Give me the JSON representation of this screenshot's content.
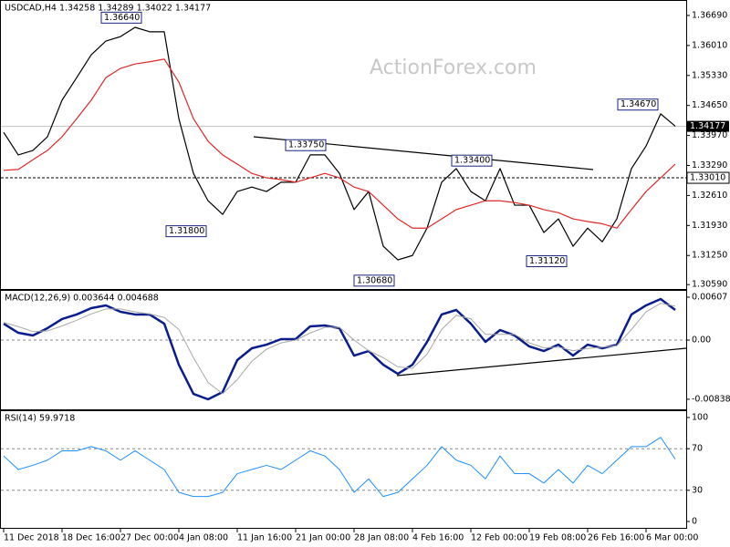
{
  "chart_data": [
    {
      "type": "line",
      "title": "USDCAD,H4  1.34258 1.34289 1.34022 1.34177",
      "watermark": "ActionForex.com",
      "ylim": [
        1.3047,
        1.3704
      ],
      "yticks": [
        {
          "value": 1.3669,
          "label": "1.36690"
        },
        {
          "value": 1.3601,
          "label": "1.36010"
        },
        {
          "value": 1.3533,
          "label": "1.35330"
        },
        {
          "value": 1.3465,
          "label": "1.34650"
        },
        {
          "value": 1.3397,
          "label": "1.33970"
        },
        {
          "value": 1.3329,
          "label": "1.33290"
        },
        {
          "value": 1.3261,
          "label": "1.32610"
        },
        {
          "value": 1.3193,
          "label": "1.31930"
        },
        {
          "value": 1.3125,
          "label": "1.31250"
        },
        {
          "value": 1.3059,
          "label": "1.30590"
        }
      ],
      "series": [
        {
          "color": "#000000",
          "values": [
            1.3404,
            1.3353,
            1.3363,
            1.3394,
            1.3477,
            1.3528,
            1.358,
            1.3611,
            1.3621,
            1.3642,
            1.3632,
            1.3632,
            1.3435,
            1.3311,
            1.3249,
            1.3218,
            1.327,
            1.328,
            1.327,
            1.3291,
            1.3291,
            1.3353,
            1.3353,
            1.3311,
            1.3229,
            1.327,
            1.3146,
            1.3115,
            1.3125,
            1.3187,
            1.3291,
            1.3322,
            1.327,
            1.3249,
            1.3322,
            1.3239,
            1.3239,
            1.3177,
            1.3208,
            1.3146,
            1.3187,
            1.3156,
            1.3208,
            1.3322,
            1.3373,
            1.3446,
            1.3418
          ]
        },
        {
          "color": "#e02828",
          "values": [
            1.3318,
            1.332,
            1.3342,
            1.3363,
            1.3394,
            1.3435,
            1.3477,
            1.3528,
            1.3549,
            1.3559,
            1.3564,
            1.357,
            1.3518,
            1.3435,
            1.3384,
            1.3353,
            1.3332,
            1.3311,
            1.3301,
            1.3297,
            1.3291,
            1.3301,
            1.3311,
            1.3301,
            1.328,
            1.327,
            1.3239,
            1.3208,
            1.3187,
            1.3187,
            1.3208,
            1.3229,
            1.3239,
            1.3249,
            1.3249,
            1.3245,
            1.3239,
            1.3229,
            1.3222,
            1.3208,
            1.3202,
            1.3197,
            1.3187,
            1.3229,
            1.327,
            1.3301,
            1.3332
          ]
        }
      ],
      "annotations": [
        {
          "value": 1.3664,
          "label": "1.36640"
        },
        {
          "value": 1.3375,
          "label": "1.33750"
        },
        {
          "value": 1.318,
          "label": "1.31800"
        },
        {
          "value": 1.3068,
          "label": "1.30680"
        },
        {
          "value": 1.334,
          "label": "1.33400"
        },
        {
          "value": 1.3112,
          "label": "1.31120"
        },
        {
          "value": 1.3467,
          "label": "1.34670"
        }
      ],
      "level": {
        "value": 1.3301,
        "label": "1.33010"
      },
      "current_price": {
        "value": 1.34177,
        "label": "1.34177"
      }
    },
    {
      "type": "line",
      "title": "MACD(12,26,9) 0.003644 0.004688",
      "ylim": [
        -0.00994,
        0.0071
      ],
      "yticks": [
        0.00607,
        {
          "value": 0,
          "label": "0.00"
        },
        -0.008381
      ],
      "reference_lines": [
        0
      ],
      "series": [
        {
          "color": "#0b1d8c",
          "width": 2.5,
          "values": [
            0.00232,
            0.00103,
            0.00065,
            0.00168,
            0.00297,
            0.00362,
            0.00452,
            0.00491,
            0.004,
            0.00362,
            0.00362,
            0.00232,
            -0.00349,
            -0.00762,
            -0.00839,
            -0.00736,
            -0.00284,
            -0.00116,
            -0.00065,
            0.00013,
            0.00013,
            0.00194,
            0.00207,
            0.00168,
            -0.0022,
            -0.00155,
            -0.00349,
            -0.00478,
            -0.00349,
            -0.00026,
            0.00362,
            0.00426,
            0.00232,
            -0.00026,
            0.00142,
            0.00065,
            -0.0009,
            -0.00155,
            -0.00065,
            -0.0022,
            -0.00065,
            -0.00116,
            -0.00065,
            0.00362,
            0.00491,
            0.00581,
            0.00426
          ]
        },
        {
          "color": "#a8a8a8",
          "width": 1,
          "values": [
            0.0025,
            0.0019,
            0.0012,
            0.0013,
            0.002,
            0.0028,
            0.0037,
            0.0044,
            0.0044,
            0.004,
            0.0037,
            0.0032,
            0.0015,
            -0.0025,
            -0.006,
            -0.0076,
            -0.0056,
            -0.003,
            -0.0013,
            -0.0004,
            0,
            0.001,
            0.0018,
            0.0018,
            0,
            -0.0015,
            -0.0025,
            -0.0038,
            -0.004,
            -0.002,
            0.0015,
            0.0035,
            0.003,
            0.0008,
            0.0008,
            0.0008,
            -0.0004,
            -0.0011,
            -0.001,
            -0.0015,
            -0.0012,
            -0.001,
            -0.0008,
            0.0015,
            0.004,
            0.0052,
            0.0048
          ]
        }
      ]
    },
    {
      "type": "line",
      "title": "RSI(14) 59.9718",
      "ylim": [
        -7,
        107
      ],
      "yticks": [
        0,
        30,
        70,
        100
      ],
      "reference_lines": [
        30,
        70
      ],
      "categories": [
        "11 Dec 2018",
        null,
        null,
        null,
        "18 Dec 16:00",
        null,
        null,
        null,
        "27 Dec 00:00",
        null,
        null,
        null,
        "4 Jan 08:00",
        null,
        null,
        null,
        "11 Jan 16:00",
        null,
        null,
        null,
        "21 Jan 00:00",
        null,
        null,
        null,
        "28 Jan 08:00",
        null,
        null,
        null,
        "4 Feb 16:00",
        null,
        null,
        null,
        "12 Feb 00:00",
        null,
        null,
        null,
        "19 Feb 08:00",
        null,
        null,
        null,
        "26 Feb 16:00",
        null,
        null,
        null,
        "6 Mar 00:00",
        null,
        null
      ],
      "series": [
        {
          "color": "#1e90ff",
          "width": 1,
          "values": [
            63,
            50,
            54,
            59,
            68,
            68,
            72,
            68,
            59,
            68,
            59,
            50,
            28,
            24,
            24,
            28,
            46,
            50,
            54,
            50,
            59,
            68,
            63,
            50,
            28,
            41,
            24,
            28,
            41,
            54,
            72,
            59,
            54,
            41,
            63,
            46,
            46,
            37,
            50,
            37,
            54,
            46,
            59,
            72,
            72,
            81,
            60
          ]
        }
      ]
    }
  ]
}
